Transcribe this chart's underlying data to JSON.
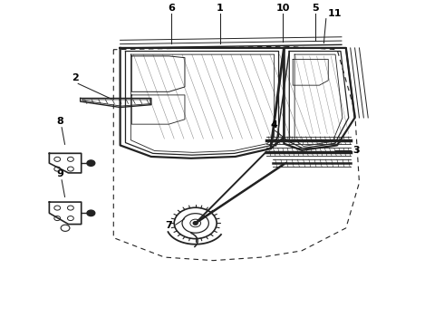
{
  "bg_color": "#ffffff",
  "line_color": "#222222",
  "figsize": [
    4.9,
    3.6
  ],
  "dpi": 100,
  "labels": {
    "1": [
      0.495,
      0.955,
      0.495,
      0.875
    ],
    "6": [
      0.385,
      0.955,
      0.385,
      0.875
    ],
    "10": [
      0.64,
      0.96,
      0.64,
      0.875
    ],
    "5": [
      0.71,
      0.96,
      0.71,
      0.882
    ],
    "11": [
      0.73,
      0.94,
      0.73,
      0.87
    ],
    "2": [
      0.155,
      0.74,
      0.23,
      0.695
    ],
    "8": [
      0.12,
      0.61,
      0.145,
      0.565
    ],
    "9": [
      0.12,
      0.445,
      0.145,
      0.4
    ],
    "4": [
      0.62,
      0.6,
      0.62,
      0.558
    ],
    "3": [
      0.79,
      0.543,
      0.745,
      0.543
    ],
    "7": [
      0.36,
      0.31,
      0.4,
      0.33
    ]
  }
}
